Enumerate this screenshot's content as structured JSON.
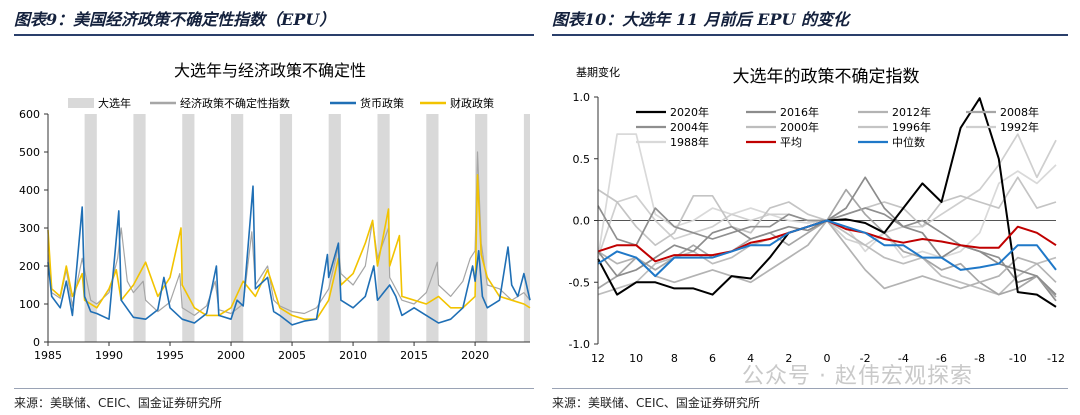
{
  "left_figure": {
    "caption": "图表9：美国经济政策不确定性指数（EPU）",
    "source": "来源：美联储、CEIC、国金证券研究所"
  },
  "right_figure": {
    "caption": "图表10：大选年 11 月前后 EPU 的变化",
    "source": "来源：美联储、CEIC、国金证券研究所"
  },
  "watermark": "公众号 · 赵伟宏观探索",
  "chart_data": [
    {
      "type": "line",
      "title": "大选年与经济政策不确定性",
      "xlabel": "",
      "ylabel": "",
      "xlim": [
        1985,
        2024.5
      ],
      "ylim": [
        0,
        600
      ],
      "yticks": [
        0,
        100,
        200,
        300,
        400,
        500,
        600
      ],
      "xticks": [
        1985,
        1990,
        1995,
        2000,
        2005,
        2010,
        2015,
        2020
      ],
      "legend_position": "top",
      "election_years": [
        1988,
        1992,
        1996,
        2000,
        2004,
        2008,
        2012,
        2016,
        2020,
        2024
      ],
      "series": [
        {
          "name": "大选年",
          "kind": "band",
          "color": "#d9d9d9"
        },
        {
          "name": "经济政策不确定性指数",
          "color": "#a6a6a6",
          "points": [
            [
              1985,
              240
            ],
            [
              1985.3,
              130
            ],
            [
              1986,
              115
            ],
            [
              1986.5,
              190
            ],
            [
              1987,
              95
            ],
            [
              1987.8,
              220
            ],
            [
              1988.5,
              110
            ],
            [
              1989,
              100
            ],
            [
              1990,
              130
            ],
            [
              1990.7,
              220
            ],
            [
              1991,
              300
            ],
            [
              1991.5,
              160
            ],
            [
              1992,
              130
            ],
            [
              1992.8,
              160
            ],
            [
              1993,
              110
            ],
            [
              1994,
              80
            ],
            [
              1995,
              105
            ],
            [
              1995.8,
              180
            ],
            [
              1996,
              90
            ],
            [
              1997,
              70
            ],
            [
              1998,
              95
            ],
            [
              1998.7,
              160
            ],
            [
              1999,
              85
            ],
            [
              2000,
              75
            ],
            [
              2001,
              100
            ],
            [
              2001.7,
              290
            ],
            [
              2002,
              150
            ],
            [
              2003,
              200
            ],
            [
              2003.5,
              110
            ],
            [
              2004,
              95
            ],
            [
              2005,
              80
            ],
            [
              2006,
              75
            ],
            [
              2007,
              90
            ],
            [
              2008,
              140
            ],
            [
              2008.8,
              250
            ],
            [
              2009,
              180
            ],
            [
              2010,
              150
            ],
            [
              2011,
              200
            ],
            [
              2011.6,
              320
            ],
            [
              2012,
              220
            ],
            [
              2012.9,
              300
            ],
            [
              2013,
              170
            ],
            [
              2014,
              110
            ],
            [
              2015,
              100
            ],
            [
              2016,
              130
            ],
            [
              2016.9,
              210
            ],
            [
              2017,
              150
            ],
            [
              2018,
              120
            ],
            [
              2019,
              160
            ],
            [
              2019.6,
              220
            ],
            [
              2020,
              240
            ],
            [
              2020.2,
              500
            ],
            [
              2020.5,
              260
            ],
            [
              2021,
              150
            ],
            [
              2022,
              140
            ],
            [
              2023,
              110
            ],
            [
              2024,
              130
            ],
            [
              2024.5,
              110
            ]
          ]
        },
        {
          "name": "货币政策",
          "color": "#1f6fb5",
          "points": [
            [
              1985,
              210
            ],
            [
              1985.3,
              120
            ],
            [
              1986,
              90
            ],
            [
              1986.5,
              160
            ],
            [
              1987,
              70
            ],
            [
              1987.8,
              355
            ],
            [
              1988,
              120
            ],
            [
              1988.5,
              80
            ],
            [
              1989,
              75
            ],
            [
              1990,
              60
            ],
            [
              1990.8,
              345
            ],
            [
              1991,
              110
            ],
            [
              1992,
              65
            ],
            [
              1993,
              60
            ],
            [
              1994,
              85
            ],
            [
              1994.5,
              170
            ],
            [
              1995,
              90
            ],
            [
              1996,
              60
            ],
            [
              1997,
              50
            ],
            [
              1998,
              75
            ],
            [
              1998.8,
              200
            ],
            [
              1999,
              70
            ],
            [
              2000,
              60
            ],
            [
              2000.5,
              110
            ],
            [
              2001,
              95
            ],
            [
              2001.8,
              410
            ],
            [
              2002,
              140
            ],
            [
              2003,
              170
            ],
            [
              2003.5,
              80
            ],
            [
              2004,
              70
            ],
            [
              2005,
              45
            ],
            [
              2006,
              55
            ],
            [
              2007,
              60
            ],
            [
              2007.9,
              230
            ],
            [
              2008,
              170
            ],
            [
              2008.8,
              260
            ],
            [
              2009,
              110
            ],
            [
              2010,
              90
            ],
            [
              2011,
              120
            ],
            [
              2011.7,
              200
            ],
            [
              2012,
              110
            ],
            [
              2013,
              150
            ],
            [
              2013.5,
              120
            ],
            [
              2014,
              70
            ],
            [
              2015,
              90
            ],
            [
              2016,
              70
            ],
            [
              2017,
              50
            ],
            [
              2018,
              60
            ],
            [
              2019,
              90
            ],
            [
              2019.8,
              200
            ],
            [
              2020,
              160
            ],
            [
              2020.3,
              240
            ],
            [
              2020.6,
              120
            ],
            [
              2021,
              90
            ],
            [
              2022,
              110
            ],
            [
              2022.7,
              250
            ],
            [
              2023,
              150
            ],
            [
              2023.5,
              120
            ],
            [
              2024,
              180
            ],
            [
              2024.5,
              110
            ]
          ]
        },
        {
          "name": "财政政策",
          "color": "#f2c300",
          "points": [
            [
              1985,
              295
            ],
            [
              1985.3,
              140
            ],
            [
              1986,
              120
            ],
            [
              1986.5,
              200
            ],
            [
              1987,
              120
            ],
            [
              1987.8,
              180
            ],
            [
              1988,
              110
            ],
            [
              1989,
              90
            ],
            [
              1990,
              140
            ],
            [
              1990.6,
              190
            ],
            [
              1991,
              110
            ],
            [
              1992,
              150
            ],
            [
              1993,
              210
            ],
            [
              1994,
              120
            ],
            [
              1995,
              170
            ],
            [
              1995.9,
              300
            ],
            [
              1996,
              150
            ],
            [
              1997,
              90
            ],
            [
              1998,
              70
            ],
            [
              1999,
              70
            ],
            [
              2000,
              90
            ],
            [
              2001,
              160
            ],
            [
              2002,
              120
            ],
            [
              2003,
              190
            ],
            [
              2004,
              90
            ],
            [
              2005,
              70
            ],
            [
              2006,
              60
            ],
            [
              2007,
              60
            ],
            [
              2008,
              110
            ],
            [
              2008.8,
              220
            ],
            [
              2009,
              150
            ],
            [
              2010,
              180
            ],
            [
              2011,
              260
            ],
            [
              2011.6,
              320
            ],
            [
              2012,
              200
            ],
            [
              2012.9,
              350
            ],
            [
              2013,
              200
            ],
            [
              2013.8,
              280
            ],
            [
              2014,
              120
            ],
            [
              2015,
              110
            ],
            [
              2016,
              100
            ],
            [
              2017,
              120
            ],
            [
              2018,
              90
            ],
            [
              2019,
              90
            ],
            [
              2020,
              120
            ],
            [
              2020.2,
              440
            ],
            [
              2020.5,
              230
            ],
            [
              2021,
              170
            ],
            [
              2022,
              120
            ],
            [
              2023,
              110
            ],
            [
              2024,
              100
            ],
            [
              2024.5,
              90
            ]
          ]
        }
      ]
    },
    {
      "type": "line",
      "title": "大选年的政策不确定指数",
      "ylabel": "基期变化",
      "xlabel": "",
      "x": [
        12,
        11,
        10,
        9,
        8,
        7,
        6,
        5,
        4,
        3,
        2,
        1,
        0,
        -1,
        -2,
        -3,
        -4,
        -5,
        -6,
        -7,
        -8,
        -9,
        -10,
        -11,
        -12
      ],
      "xticks": [
        12,
        10,
        8,
        6,
        4,
        2,
        0,
        -2,
        -4,
        -6,
        -8,
        -10,
        -12
      ],
      "ylim": [
        -1.0,
        1.0
      ],
      "yticks": [
        -1.0,
        -0.5,
        0.0,
        0.5,
        1.0
      ],
      "legend_position": "top",
      "series": [
        {
          "name": "2020年",
          "color": "#000000",
          "values": [
            -0.31,
            -0.6,
            -0.5,
            -0.5,
            -0.55,
            -0.55,
            -0.6,
            -0.45,
            -0.47,
            -0.3,
            -0.1,
            -0.05,
            0,
            0.01,
            -0.02,
            -0.1,
            0.1,
            0.3,
            0.15,
            0.75,
            0.99,
            0.5,
            -0.58,
            -0.6,
            -0.7
          ]
        },
        {
          "name": "2016年",
          "color": "#8c8c8c",
          "values": [
            -0.25,
            -0.45,
            -0.4,
            -0.3,
            -0.2,
            -0.25,
            -0.1,
            -0.05,
            -0.15,
            -0.1,
            -0.05,
            -0.08,
            0,
            0.1,
            0.35,
            0.1,
            -0.05,
            -0.1,
            -0.3,
            -0.2,
            -0.25,
            -0.35,
            -0.4,
            -0.45,
            -0.6
          ]
        },
        {
          "name": "2012年",
          "color": "#b3b3b3",
          "values": [
            -0.25,
            -0.35,
            -0.3,
            -0.45,
            -0.5,
            -0.45,
            -0.4,
            -0.45,
            -0.5,
            -0.4,
            -0.3,
            -0.2,
            0,
            -0.2,
            -0.4,
            -0.55,
            -0.5,
            -0.45,
            -0.5,
            -0.55,
            -0.5,
            -0.45,
            -0.3,
            -0.35,
            -0.5
          ]
        },
        {
          "name": "2008年",
          "color": "#a6a6a6",
          "values": [
            -0.55,
            -0.45,
            -0.3,
            -0.4,
            -0.3,
            -0.2,
            -0.3,
            -0.25,
            -0.15,
            -0.1,
            -0.2,
            -0.1,
            0,
            0.25,
            0.05,
            -0.1,
            -0.25,
            -0.3,
            -0.4,
            -0.35,
            -0.5,
            -0.6,
            -0.55,
            -0.45,
            -0.62
          ]
        },
        {
          "name": "2004年",
          "color": "#8f8f8f",
          "values": [
            0.12,
            -0.15,
            -0.2,
            0.1,
            -0.05,
            -0.1,
            -0.15,
            -0.1,
            -0.05,
            -0.05,
            0.05,
            0.0,
            0,
            0.05,
            0.1,
            0.05,
            -0.05,
            0.0,
            -0.1,
            -0.2,
            -0.25,
            -0.3,
            -0.5,
            -0.45,
            -0.65
          ]
        },
        {
          "name": "2000年",
          "color": "#bdbdbd",
          "values": [
            -0.6,
            -0.55,
            -0.5,
            -0.35,
            -0.3,
            -0.25,
            -0.35,
            -0.3,
            -0.2,
            -0.15,
            -0.1,
            -0.05,
            0,
            -0.1,
            -0.2,
            -0.3,
            -0.35,
            -0.3,
            -0.45,
            -0.5,
            -0.55,
            -0.6,
            -0.45,
            -0.35,
            -0.3
          ]
        },
        {
          "name": "1996年",
          "color": "#c4c4c4",
          "values": [
            0.25,
            0.15,
            -0.05,
            -0.2,
            -0.1,
            0.2,
            0.2,
            -0.05,
            -0.1,
            0.1,
            0.15,
            0.05,
            0,
            0.05,
            0.1,
            0.15,
            0.1,
            -0.05,
            0.15,
            0.2,
            0.15,
            0.1,
            0.35,
            0.1,
            0.15
          ]
        },
        {
          "name": "1992年",
          "color": "#cfcfcf",
          "values": [
            -0.3,
            0.15,
            0.2,
            0.0,
            -0.15,
            -0.1,
            -0.05,
            0.05,
            0.0,
            0.05,
            0.05,
            0.0,
            0,
            -0.15,
            -0.2,
            -0.1,
            -0.05,
            -0.05,
            0.05,
            0.15,
            0.25,
            0.45,
            0.7,
            0.35,
            0.65
          ]
        },
        {
          "name": "1988年",
          "color": "#d9d9d9",
          "values": [
            -0.3,
            0.7,
            0.7,
            0.05,
            -0.05,
            0.0,
            0.1,
            0.05,
            0.1,
            0.05,
            0.0,
            -0.02,
            0,
            -0.05,
            -0.25,
            -0.1,
            -0.3,
            -0.25,
            -0.3,
            -0.25,
            -0.1,
            0.3,
            0.4,
            0.3,
            0.45
          ]
        },
        {
          "name": "平均",
          "color": "#c00000",
          "values": [
            -0.25,
            -0.2,
            -0.2,
            -0.33,
            -0.28,
            -0.28,
            -0.28,
            -0.25,
            -0.18,
            -0.15,
            -0.1,
            -0.05,
            0,
            -0.07,
            -0.1,
            -0.15,
            -0.18,
            -0.15,
            -0.17,
            -0.2,
            -0.22,
            -0.22,
            -0.05,
            -0.1,
            -0.2
          ]
        },
        {
          "name": "中位数",
          "color": "#1f78c8",
          "values": [
            -0.35,
            -0.25,
            -0.3,
            -0.45,
            -0.3,
            -0.3,
            -0.3,
            -0.25,
            -0.2,
            -0.2,
            -0.1,
            -0.05,
            0,
            -0.05,
            -0.1,
            -0.2,
            -0.2,
            -0.3,
            -0.3,
            -0.4,
            -0.38,
            -0.35,
            -0.2,
            -0.2,
            -0.4
          ]
        }
      ]
    }
  ]
}
